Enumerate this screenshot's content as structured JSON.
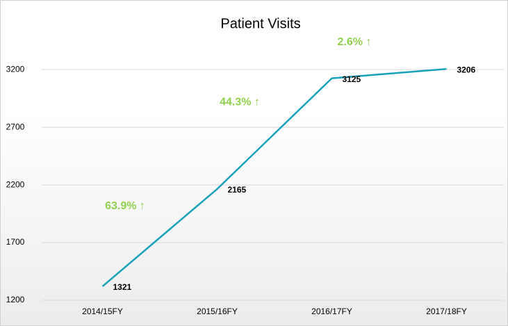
{
  "chart_data": {
    "type": "line",
    "title": "Patient Visits",
    "categories": [
      "2014/15FY",
      "2015/16FY",
      "2016/17FY",
      "2017/18FY"
    ],
    "values": [
      1321,
      2165,
      3125,
      3206
    ],
    "color": "#17a2b8",
    "annotations": [
      "63.9% ↑",
      "44.3% ↑",
      "2.6% ↑"
    ],
    "ylim": [
      1200,
      3400
    ],
    "yticks": [
      1200,
      1700,
      2200,
      2700,
      3200
    ],
    "grid": true
  }
}
